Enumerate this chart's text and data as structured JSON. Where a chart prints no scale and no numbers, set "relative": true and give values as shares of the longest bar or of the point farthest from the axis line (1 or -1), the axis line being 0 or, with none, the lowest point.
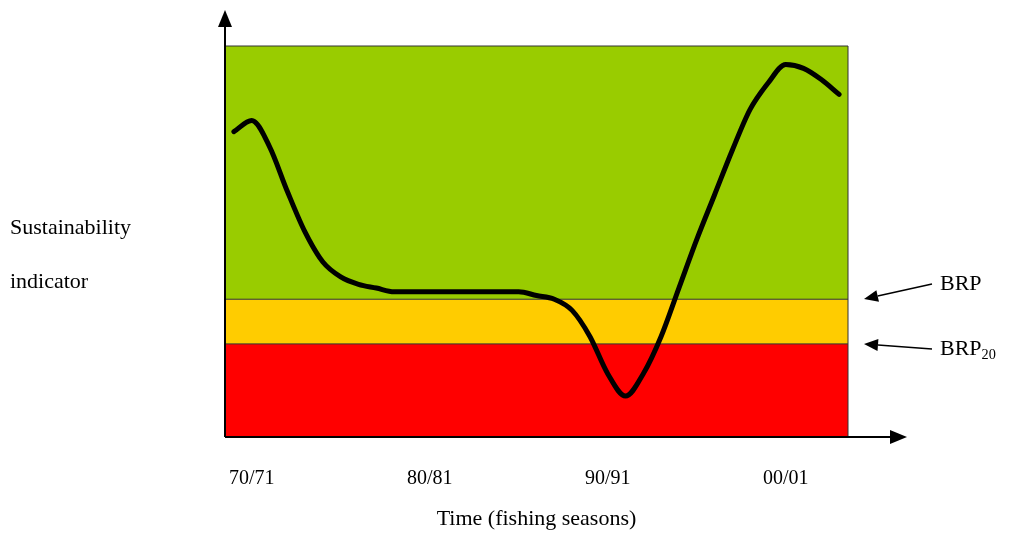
{
  "chart_data": {
    "type": "line",
    "relative": true,
    "xlabel": "Time (fishing seasons)",
    "ylabel": "Sustainability indicator",
    "categories": [
      null,
      "70/71",
      null,
      null,
      null,
      null,
      null,
      null,
      null,
      null,
      null,
      "80/81",
      null,
      null,
      null,
      null,
      null,
      null,
      null,
      null,
      null,
      "90/91",
      null,
      null,
      null,
      null,
      null,
      null,
      null,
      null,
      null,
      "00/01",
      null,
      null,
      null
    ],
    "grid": false,
    "legend": false,
    "marker": "none",
    "line_style": "solid",
    "series": [
      {
        "color": "#000000",
        "values": [
          0.82,
          0.85,
          0.78,
          0.66,
          0.55,
          0.47,
          0.43,
          0.41,
          0.4,
          0.39,
          0.39,
          0.39,
          0.39,
          0.39,
          0.39,
          0.39,
          0.39,
          0.38,
          0.37,
          0.34,
          0.27,
          0.17,
          0.11,
          0.17,
          0.27,
          0.4,
          0.53,
          0.65,
          0.77,
          0.88,
          0.95,
          1,
          0.99,
          0.96,
          0.92
        ]
      }
    ],
    "bands": [
      {
        "axis": "y",
        "from": 0,
        "to": 0.25,
        "color": "#ff0000"
      },
      {
        "axis": "y",
        "from": 0.25,
        "to": 0.37,
        "color": "#ffcc00"
      },
      {
        "axis": "y",
        "from": 0.37,
        "to": 1.05,
        "color": "#99cc00"
      }
    ],
    "ref_lines": [
      {
        "axis": "y",
        "value": 0.37
      },
      {
        "axis": "y",
        "value": 0.25
      }
    ],
    "annotations": [
      "BRP",
      "BRP$_{20}$"
    ]
  }
}
